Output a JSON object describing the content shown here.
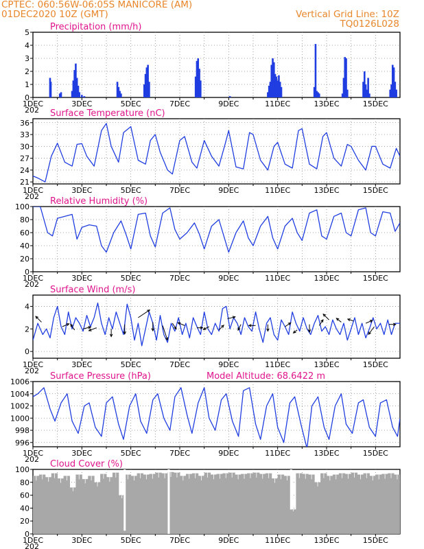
{
  "header": {
    "line1": "CPTEC:   060:56W-06:05S   MANICORE (AM)",
    "line2": "01DEC2020 10Z (GMT)",
    "grid_note": "Vertical Grid Line: 10Z",
    "code": "TQ0126L028"
  },
  "colors": {
    "header": "#e8862a",
    "title": "#e0148c",
    "series": "#1f3de0",
    "cloud": "#a8a8a8",
    "arrow": "#000000"
  },
  "x_axis": {
    "day_start": 1,
    "day_end": 16,
    "tick_labels": [
      "1DEC",
      "3DEC",
      "5DEC",
      "7DEC",
      "9DEC",
      "11DEC",
      "13DEC",
      "15DEC"
    ],
    "tick_days": [
      1,
      3,
      5,
      7,
      9,
      11,
      13,
      15
    ],
    "year_fragment": "202"
  },
  "chart_data": [
    {
      "type": "bar",
      "title": "Precipitation (mm/h)",
      "ylim": [
        0,
        5
      ],
      "yticks": [
        0,
        1,
        2,
        3,
        4,
        5
      ],
      "x": [
        1.7,
        1.73,
        2.1,
        2.15,
        2.6,
        2.65,
        2.7,
        2.75,
        2.8,
        2.85,
        2.9,
        3.0,
        3.1,
        4.45,
        4.5,
        4.55,
        4.6,
        5.55,
        5.6,
        5.65,
        5.7,
        5.75,
        7.65,
        7.7,
        7.75,
        7.8,
        7.85,
        9.05,
        10.6,
        10.65,
        10.7,
        10.75,
        10.8,
        10.85,
        10.9,
        10.95,
        11.0,
        11.05,
        11.1,
        11.15,
        12.5,
        12.55,
        12.6,
        12.65,
        12.7,
        13.65,
        13.7,
        13.75,
        13.8,
        13.85,
        14.5,
        14.55,
        14.6,
        14.65,
        14.7,
        14.75,
        15.6,
        15.65,
        15.7,
        15.75,
        15.8,
        15.85
      ],
      "values": [
        1.5,
        1.2,
        0.3,
        0.4,
        0.5,
        1.3,
        2.1,
        2.6,
        1.5,
        0.9,
        0.4,
        0.2,
        0.1,
        1.2,
        0.8,
        0.5,
        0.3,
        1.0,
        1.8,
        2.3,
        2.5,
        1.2,
        1.6,
        2.8,
        3.0,
        2.2,
        1.3,
        0.1,
        0.4,
        0.9,
        1.2,
        2.5,
        3.0,
        2.7,
        1.8,
        1.6,
        1.3,
        1.7,
        1.2,
        0.8,
        0.8,
        4.1,
        0.5,
        0.4,
        0.3,
        0.3,
        1.5,
        3.1,
        3.0,
        0.6,
        1.2,
        2.0,
        1.0,
        0.6,
        1.5,
        0.3,
        0.6,
        1.0,
        2.5,
        2.3,
        1.2,
        0.6
      ]
    },
    {
      "type": "line",
      "title": "Surface Temperature (nC)",
      "ylim": [
        20.5,
        37
      ],
      "yticks": [
        21,
        24,
        27,
        30,
        33,
        36
      ],
      "x": [
        1.0,
        1.2,
        1.5,
        1.75,
        2.0,
        2.3,
        2.6,
        2.8,
        3.0,
        3.2,
        3.5,
        3.8,
        4.0,
        4.2,
        4.5,
        4.7,
        5.0,
        5.3,
        5.6,
        5.8,
        6.0,
        6.2,
        6.5,
        6.7,
        7.0,
        7.2,
        7.5,
        7.7,
        8.0,
        8.3,
        8.6,
        8.85,
        9.0,
        9.3,
        9.6,
        9.85,
        10.0,
        10.3,
        10.6,
        10.85,
        11.0,
        11.3,
        11.6,
        11.85,
        12.0,
        12.3,
        12.6,
        12.85,
        13.0,
        13.3,
        13.6,
        13.85,
        14.0,
        14.3,
        14.6,
        14.85,
        15.0,
        15.3,
        15.6,
        15.85,
        16.0
      ],
      "values": [
        22.5,
        22.0,
        21.0,
        27.5,
        30.8,
        26.0,
        25.0,
        30.5,
        30.7,
        27.5,
        25.0,
        34.0,
        35.8,
        30.0,
        26.0,
        33.5,
        35.0,
        26.5,
        25.5,
        31.5,
        33.0,
        28.5,
        24.0,
        23.0,
        31.5,
        32.5,
        26.0,
        24.5,
        31.5,
        27.5,
        25.0,
        30.5,
        34.0,
        24.8,
        24.3,
        33.5,
        33.0,
        26.5,
        24.0,
        30.0,
        31.0,
        25.5,
        24.5,
        34.0,
        34.5,
        25.5,
        24.3,
        32.5,
        33.5,
        27.0,
        25.0,
        30.5,
        30.0,
        26.5,
        24.0,
        30.0,
        30.0,
        25.5,
        24.5,
        29.5,
        27.5
      ]
    },
    {
      "type": "line",
      "title": "Relative Humidity (%)",
      "ylim": [
        0,
        100
      ],
      "yticks": [
        0,
        20,
        40,
        60,
        80,
        100
      ],
      "x": [
        1.0,
        1.3,
        1.6,
        1.8,
        2.0,
        2.3,
        2.6,
        2.8,
        3.0,
        3.3,
        3.6,
        3.8,
        4.0,
        4.3,
        4.6,
        4.8,
        5.0,
        5.3,
        5.6,
        5.8,
        6.0,
        6.3,
        6.6,
        6.8,
        7.0,
        7.3,
        7.6,
        7.8,
        8.0,
        8.3,
        8.6,
        8.8,
        9.0,
        9.3,
        9.6,
        9.8,
        10.0,
        10.3,
        10.6,
        10.8,
        11.0,
        11.3,
        11.6,
        11.8,
        12.0,
        12.3,
        12.6,
        12.8,
        13.0,
        13.3,
        13.6,
        13.8,
        14.0,
        14.3,
        14.6,
        14.8,
        15.0,
        15.3,
        15.6,
        15.8,
        16.0
      ],
      "values": [
        100,
        100,
        60,
        55,
        82,
        85,
        88,
        50,
        68,
        72,
        70,
        40,
        30,
        60,
        78,
        58,
        35,
        88,
        90,
        55,
        38,
        90,
        98,
        65,
        50,
        60,
        75,
        58,
        35,
        70,
        80,
        55,
        30,
        60,
        78,
        52,
        40,
        70,
        85,
        52,
        35,
        70,
        82,
        60,
        48,
        90,
        95,
        55,
        50,
        85,
        90,
        60,
        55,
        95,
        98,
        60,
        55,
        92,
        90,
        62,
        75
      ]
    },
    {
      "type": "line",
      "title": "Surface Wind (m/s)",
      "ylim": [
        -0.6,
        5
      ],
      "yticks": [
        0,
        2,
        4
      ],
      "x": [
        1.0,
        1.2,
        1.4,
        1.55,
        1.7,
        1.85,
        2.0,
        2.15,
        2.3,
        2.45,
        2.6,
        2.75,
        2.9,
        3.05,
        3.2,
        3.35,
        3.5,
        3.65,
        3.8,
        3.95,
        4.1,
        4.25,
        4.4,
        4.55,
        4.7,
        4.85,
        5.0,
        5.15,
        5.3,
        5.45,
        5.6,
        5.75,
        5.9,
        6.05,
        6.2,
        6.35,
        6.5,
        6.65,
        6.8,
        6.95,
        7.1,
        7.25,
        7.4,
        7.55,
        7.7,
        7.85,
        8.0,
        8.15,
        8.3,
        8.45,
        8.6,
        8.75,
        8.9,
        9.05,
        9.2,
        9.35,
        9.5,
        9.65,
        9.8,
        9.95,
        10.1,
        10.25,
        10.4,
        10.55,
        10.7,
        10.85,
        11.0,
        11.15,
        11.3,
        11.45,
        11.6,
        11.75,
        11.9,
        12.05,
        12.2,
        12.35,
        12.5,
        12.65,
        12.8,
        12.95,
        13.1,
        13.25,
        13.4,
        13.55,
        13.7,
        13.85,
        14.0,
        14.15,
        14.3,
        14.45,
        14.6,
        14.75,
        14.9,
        15.05,
        15.2,
        15.35,
        15.5,
        15.65,
        15.8,
        16.0
      ],
      "values": [
        1.0,
        2.5,
        1.5,
        2.0,
        1.2,
        3.0,
        4.0,
        2.2,
        1.5,
        3.5,
        2.0,
        3.0,
        2.5,
        1.8,
        3.2,
        2.2,
        3.0,
        4.3,
        2.5,
        1.5,
        3.0,
        2.0,
        3.5,
        2.5,
        1.5,
        4.2,
        3.0,
        1.0,
        2.5,
        0.5,
        2.0,
        3.5,
        2.5,
        1.0,
        3.2,
        1.5,
        0.8,
        2.5,
        1.8,
        3.0,
        1.5,
        2.5,
        1.2,
        3.0,
        2.2,
        1.5,
        3.5,
        2.0,
        1.5,
        2.5,
        1.8,
        3.8,
        4.0,
        2.0,
        3.0,
        2.5,
        1.5,
        3.0,
        2.2,
        1.8,
        3.5,
        2.0,
        0.8,
        2.5,
        3.0,
        1.5,
        1.0,
        2.8,
        2.2,
        1.5,
        3.5,
        2.5,
        1.8,
        3.0,
        2.0,
        1.5,
        2.5,
        3.2,
        1.8,
        2.2,
        1.5,
        2.8,
        2.0,
        1.5,
        2.5,
        1.0,
        2.0,
        3.0,
        1.5,
        2.5,
        1.2,
        2.0,
        3.0,
        2.0,
        2.5,
        1.5,
        2.8,
        1.5,
        2.5,
        2.5
      ],
      "arrows": [
        {
          "day": 1.35,
          "y": 2.6,
          "u": -0.6,
          "v": 0.6
        },
        {
          "day": 2.2,
          "y": 2.2,
          "u": 0.7,
          "v": 0.3
        },
        {
          "day": 2.7,
          "y": 1.9,
          "u": -0.4,
          "v": 0.6
        },
        {
          "day": 3.05,
          "y": 2.0,
          "u": 0.8,
          "v": 0.2
        },
        {
          "day": 3.6,
          "y": 2.1,
          "u": -0.8,
          "v": -0.3
        },
        {
          "day": 4.2,
          "y": 2.0,
          "u": 0.0,
          "v": -0.8
        },
        {
          "day": 4.75,
          "y": 2.4,
          "u": 0.0,
          "v": -1.0
        },
        {
          "day": 5.3,
          "y": 3.0,
          "u": 1.2,
          "v": 0.8
        },
        {
          "day": 5.9,
          "y": 2.6,
          "u": 0.0,
          "v": -0.9
        },
        {
          "day": 6.3,
          "y": 2.3,
          "u": 0.5,
          "v": -1.5
        },
        {
          "day": 6.7,
          "y": 2.5,
          "u": 0.4,
          "v": -0.6
        },
        {
          "day": 7.2,
          "y": 2.3,
          "u": -0.7,
          "v": 0.3
        },
        {
          "day": 7.7,
          "y": 2.1,
          "u": 0.6,
          "v": 0.0
        },
        {
          "day": 8.2,
          "y": 2.2,
          "u": -0.6,
          "v": -0.3
        },
        {
          "day": 8.6,
          "y": 1.9,
          "u": 0.5,
          "v": 0.5
        },
        {
          "day": 8.95,
          "y": 2.9,
          "u": 0.8,
          "v": 0.2
        },
        {
          "day": 9.5,
          "y": 2.4,
          "u": -0.3,
          "v": -0.6
        },
        {
          "day": 10.1,
          "y": 2.3,
          "u": -0.7,
          "v": 0.0
        },
        {
          "day": 10.6,
          "y": 2.4,
          "u": 0.0,
          "v": -0.7
        },
        {
          "day": 11.3,
          "y": 2.2,
          "u": 0.6,
          "v": 0.4
        },
        {
          "day": 11.8,
          "y": 1.9,
          "u": -0.4,
          "v": -0.3
        },
        {
          "day": 12.3,
          "y": 2.4,
          "u": 0.0,
          "v": -0.8
        },
        {
          "day": 12.7,
          "y": 2.3,
          "u": 0.4,
          "v": 0.6
        },
        {
          "day": 13.1,
          "y": 2.8,
          "u": -0.6,
          "v": 0.6
        },
        {
          "day": 13.6,
          "y": 2.6,
          "u": -0.5,
          "v": 0.4
        },
        {
          "day": 14.1,
          "y": 2.7,
          "u": -0.6,
          "v": 0.2
        },
        {
          "day": 14.6,
          "y": 2.5,
          "u": 0.7,
          "v": 0.3
        },
        {
          "day": 14.95,
          "y": 2.2,
          "u": -0.6,
          "v": -0.8
        },
        {
          "day": 15.55,
          "y": 2.4,
          "u": 0.7,
          "v": 0.0
        }
      ]
    },
    {
      "type": "line",
      "title": "Surface Pressure (hPa)",
      "subtitle": "Model Altitude: 68.6422 m",
      "ylim": [
        995.3,
        1006
      ],
      "yticks": [
        996,
        998,
        1000,
        1002,
        1004,
        1006
      ],
      "x": [
        1.0,
        1.2,
        1.45,
        1.7,
        1.9,
        2.15,
        2.4,
        2.6,
        2.85,
        3.1,
        3.3,
        3.55,
        3.8,
        4.0,
        4.25,
        4.5,
        4.7,
        4.95,
        5.2,
        5.4,
        5.65,
        5.9,
        6.1,
        6.35,
        6.6,
        6.8,
        7.05,
        7.3,
        7.5,
        7.75,
        8.0,
        8.2,
        8.45,
        8.7,
        8.9,
        9.15,
        9.4,
        9.6,
        9.85,
        10.1,
        10.3,
        10.55,
        10.8,
        11.0,
        11.25,
        11.5,
        11.7,
        11.95,
        12.2,
        12.4,
        12.65,
        12.9,
        13.1,
        13.35,
        13.6,
        13.8,
        14.05,
        14.3,
        14.5,
        14.75,
        15.0,
        15.2,
        15.45,
        15.7,
        15.9,
        16.0
      ],
      "values": [
        1003.5,
        1004.0,
        1005.0,
        1001.5,
        999.5,
        1002.5,
        1004.0,
        999.5,
        997.5,
        1002.0,
        1002.5,
        998.5,
        997.0,
        1002.5,
        1003.5,
        999.0,
        996.5,
        1002.0,
        1004.0,
        999.5,
        997.5,
        1003.0,
        1004.0,
        1000.0,
        998.0,
        1003.5,
        1005.0,
        1000.5,
        997.5,
        1002.5,
        1005.0,
        1000.0,
        998.0,
        1003.0,
        1004.0,
        999.5,
        997.0,
        1004.5,
        1005.0,
        999.0,
        996.5,
        1002.0,
        1004.0,
        998.5,
        996.0,
        1002.5,
        1003.5,
        999.0,
        995.0,
        1002.0,
        1003.5,
        998.5,
        996.5,
        1002.0,
        1004.0,
        999.0,
        997.5,
        1002.5,
        1003.0,
        998.5,
        997.0,
        1002.5,
        1003.0,
        998.5,
        997.0,
        1000.0
      ]
    },
    {
      "type": "bar",
      "title": "Cloud Cover (%)",
      "ylim": [
        0,
        100
      ],
      "yticks": [
        0,
        20,
        40,
        60,
        80,
        100
      ],
      "x": [
        1.0,
        1.25,
        1.5,
        1.75,
        2.0,
        2.25,
        2.5,
        2.75,
        3.0,
        3.25,
        3.5,
        3.75,
        4.0,
        4.25,
        4.5,
        4.75,
        5.0,
        5.25,
        5.5,
        5.75,
        6.0,
        6.25,
        6.5,
        6.75,
        7.0,
        7.25,
        7.5,
        7.75,
        8.0,
        8.25,
        8.5,
        8.75,
        9.0,
        9.25,
        9.5,
        9.75,
        10.0,
        10.25,
        10.5,
        10.75,
        11.0,
        11.25,
        11.5,
        11.75,
        12.0,
        12.25,
        12.5,
        12.75,
        13.0,
        13.25,
        13.5,
        13.75,
        14.0,
        14.25,
        14.5,
        14.75,
        15.0,
        15.25,
        15.5,
        15.75
      ],
      "values": [
        90,
        92,
        88,
        94,
        86,
        90,
        72,
        92,
        85,
        90,
        80,
        93,
        88,
        95,
        60,
        92,
        90,
        94,
        92,
        93,
        95,
        94,
        96,
        95,
        90,
        93,
        94,
        90,
        95,
        92,
        93,
        94,
        95,
        92,
        93,
        94,
        95,
        93,
        94,
        86,
        92,
        90,
        38,
        94,
        93,
        92,
        80,
        94,
        90,
        92,
        94,
        93,
        95,
        92,
        94,
        90,
        92,
        93,
        94,
        92
      ],
      "gaps": [
        {
          "day": 4.75,
          "value": 5
        },
        {
          "day": 6.55,
          "value": 0
        },
        {
          "day": 11.55,
          "value": 38
        }
      ]
    }
  ]
}
